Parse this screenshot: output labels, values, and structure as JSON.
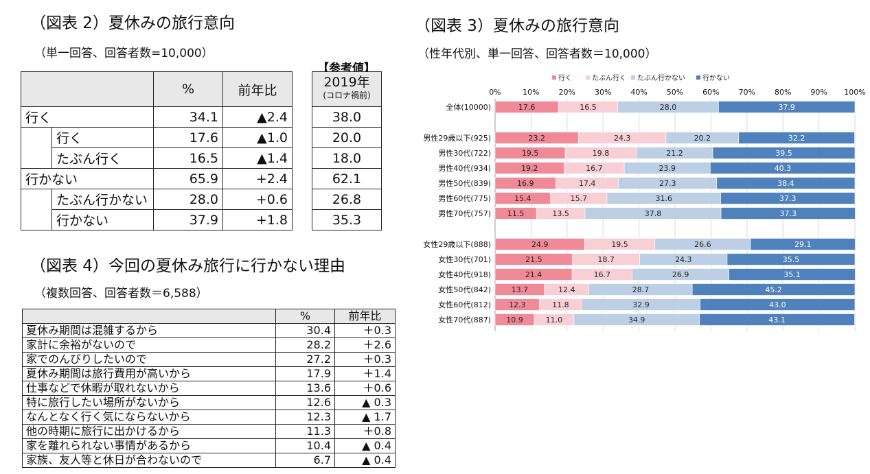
{
  "fig2": {
    "title": "（図表 2）夏休みの旅行意向",
    "subtitle": "（単一回答、回答者数=10,000）",
    "ref_label": "【参考値】",
    "headers": {
      "pct": "%",
      "yoy": "前年比",
      "y2019": "2019年",
      "y2019_note": "(コロナ禍前)"
    },
    "rows": [
      {
        "label": "行く",
        "pct": "34.1",
        "yoy": "▲2.4",
        "y2019": "38.0"
      },
      {
        "label": "行く",
        "pct": "17.6",
        "yoy": "▲1.0",
        "y2019": "20.0"
      },
      {
        "label": "たぶん行く",
        "pct": "16.5",
        "yoy": "▲1.4",
        "y2019": "18.0"
      },
      {
        "label": "行かない",
        "pct": "65.9",
        "yoy": "+2.4",
        "y2019": "62.1"
      },
      {
        "label": "たぶん行かない",
        "pct": "28.0",
        "yoy": "+0.6",
        "y2019": "26.8"
      },
      {
        "label": "行かない",
        "pct": "37.9",
        "yoy": "+1.8",
        "y2019": "35.3"
      }
    ]
  },
  "fig4": {
    "title": "（図表 4）今回の夏休み旅行に行かない理由",
    "subtitle": "（複数回答、回答者数＝6,588）",
    "headers": {
      "pct": "%",
      "yoy": "前年比"
    },
    "rows": [
      {
        "label": "夏休み期間は混雑するから",
        "pct": "30.4",
        "yoy": "＋0.3"
      },
      {
        "label": "家計に余裕がないので",
        "pct": "28.2",
        "yoy": "＋2.6"
      },
      {
        "label": "家でのんびりしたいので",
        "pct": "27.2",
        "yoy": "＋0.3"
      },
      {
        "label": "夏休み期間は旅行費用が高いから",
        "pct": "17.9",
        "yoy": "＋1.4"
      },
      {
        "label": "仕事などで休暇が取れないから",
        "pct": "13.6",
        "yoy": "＋0.6"
      },
      {
        "label": "特に旅行したい場所がないから",
        "pct": "12.6",
        "yoy": "▲ 0.3"
      },
      {
        "label": "なんとなく行く気にならないから",
        "pct": "12.3",
        "yoy": "▲ 1.7"
      },
      {
        "label": "他の時期に旅行に出かけるから",
        "pct": "11.3",
        "yoy": "＋0.8"
      },
      {
        "label": "家を離れられない事情があるから",
        "pct": "10.4",
        "yoy": "▲ 0.4"
      },
      {
        "label": "家族、友人等と休日が合わないので",
        "pct": "6.7",
        "yoy": "▲ 0.4"
      }
    ]
  },
  "fig3": {
    "title": "（図表 3）夏休みの旅行意向",
    "subtitle": "（性年代別、単一回答、回答者数＝10,000）"
  },
  "colors": {
    "iku": "#f08a98",
    "tabun_iku": "#f9cfd6",
    "tabun_ikanai": "#bccfe4",
    "ikanai": "#4f81bd"
  },
  "chart_data": {
    "type": "bar",
    "orientation": "horizontal",
    "stacked": true,
    "title": "（図表 3）夏休みの旅行意向",
    "legend_position": "top",
    "xlim": [
      0,
      100
    ],
    "xticks": [
      "0%",
      "10%",
      "20%",
      "30%",
      "40%",
      "50%",
      "60%",
      "70%",
      "80%",
      "90%",
      "100%"
    ],
    "categories": [
      "全体(10000)",
      "男性29歳以下(925)",
      "男性30代(722)",
      "男性40代(934)",
      "男性50代(839)",
      "男性60代(775)",
      "男性70代(757)",
      "女性29歳以下(888)",
      "女性30代(701)",
      "女性40代(918)",
      "女性50代(842)",
      "女性60代(812)",
      "女性70代(887)"
    ],
    "series": [
      {
        "name": "行く",
        "color": "#f08a98",
        "label_color": "#222222",
        "values": [
          17.6,
          23.2,
          19.5,
          19.2,
          16.9,
          15.4,
          11.5,
          24.9,
          21.5,
          21.4,
          13.7,
          12.3,
          10.9
        ]
      },
      {
        "name": "たぶん行く",
        "color": "#f9cfd6",
        "label_color": "#222222",
        "values": [
          16.5,
          24.3,
          19.8,
          16.7,
          17.4,
          15.7,
          13.5,
          19.5,
          18.7,
          16.7,
          12.4,
          11.8,
          11.0
        ]
      },
      {
        "name": "たぶん行かない",
        "color": "#bccfe4",
        "label_color": "#222222",
        "values": [
          28.0,
          20.2,
          21.2,
          23.9,
          27.3,
          31.6,
          37.8,
          26.6,
          24.3,
          26.9,
          28.7,
          32.9,
          34.9
        ]
      },
      {
        "name": "行かない",
        "color": "#4f81bd",
        "label_color": "#ffffff",
        "values": [
          37.9,
          32.2,
          39.5,
          40.3,
          38.4,
          37.3,
          37.3,
          29.1,
          35.5,
          35.1,
          45.2,
          43.0,
          43.1
        ]
      }
    ]
  }
}
